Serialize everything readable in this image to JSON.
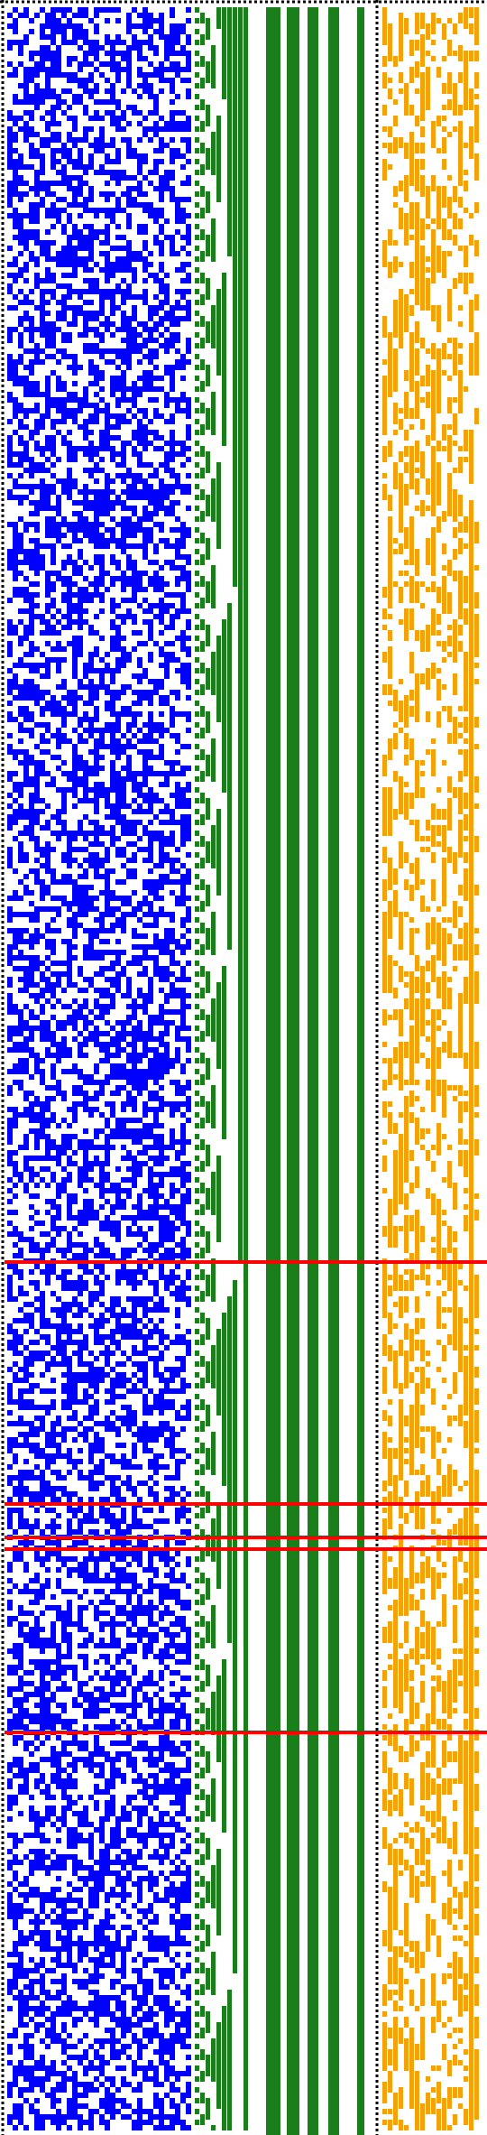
{
  "colors": {
    "background": "#ffffff",
    "left_noise": "#0000ff",
    "staircase": "#1a7f1a",
    "right_noise": "#f5a20a",
    "highlight_lines": "#ff0000",
    "dotted_border": "#000000"
  },
  "regions": [
    {
      "name": "blue-noise-region",
      "pattern": "random-bits"
    },
    {
      "name": "green-staircase-region",
      "pattern": "binary-counter-staircase"
    },
    {
      "name": "green-vertical-bars",
      "pattern": "vertical-stripes"
    },
    {
      "name": "orange-noise-region",
      "pattern": "random-bits"
    }
  ],
  "highlight_line_count": 6
}
